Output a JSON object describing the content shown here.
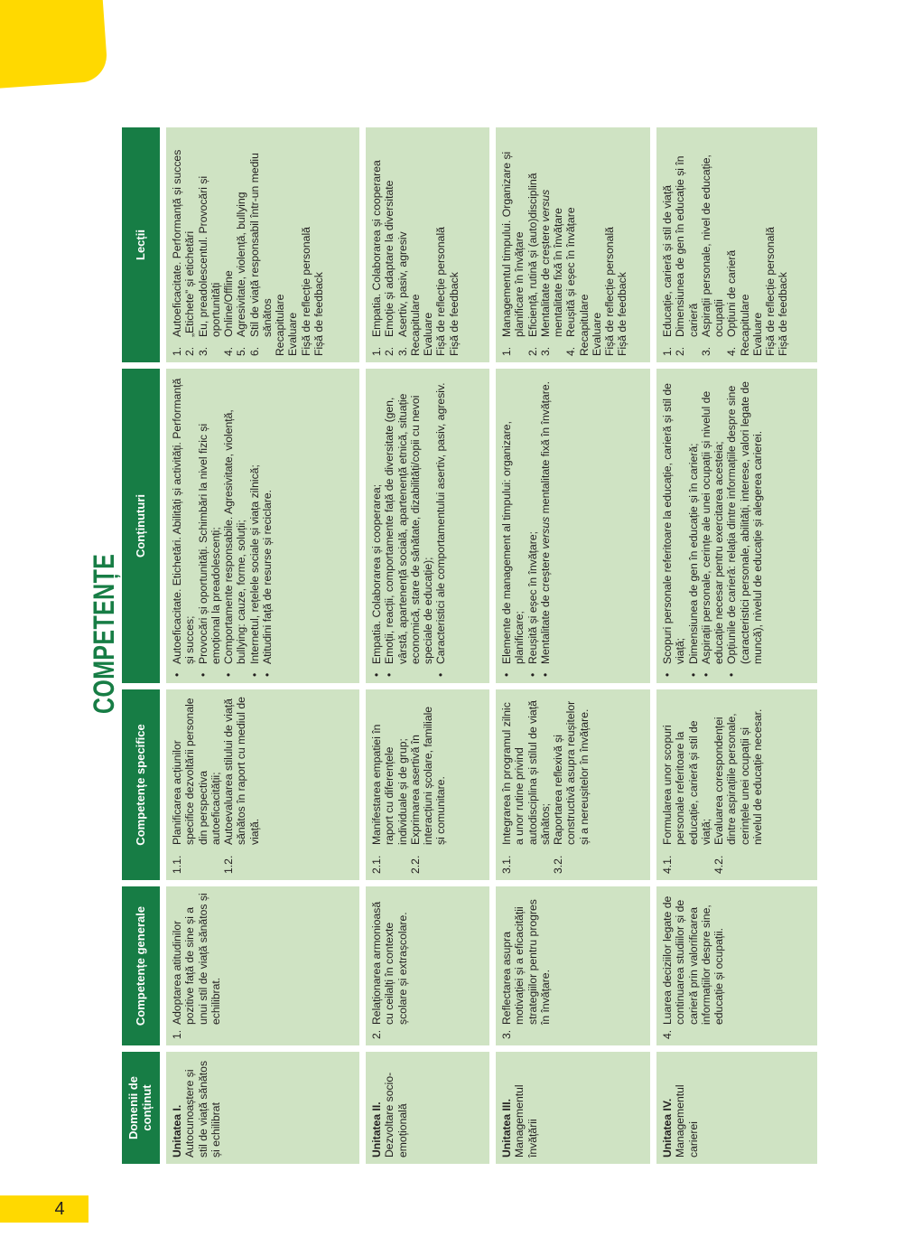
{
  "title": "COMPETENȚE",
  "page_number": "4",
  "colors": {
    "header_green": "#177d45",
    "cell_green": "#cfe3c3",
    "accent_yellow": "#ffd900",
    "text": "#231f20"
  },
  "table": {
    "headers": [
      "Domenii de conținut",
      "Competențe generale",
      "Competențe specifice",
      "Conținuturi",
      "Lecții"
    ],
    "units": [
      {
        "domain_title": "Unitatea I.",
        "domain_text": "Autocunoaștere și stil de viață sănătos și echilibrat",
        "general_competence": {
          "num": "1.",
          "text": "Adoptarea atitudinilor pozitive față de sine și a unui stil de viață sănătos și echilibrat."
        },
        "specific_competences": [
          {
            "num": "1.1.",
            "text": "Planificarea acțiunilor specifice dezvoltării personale din perspectiva autoeficacității;"
          },
          {
            "num": "1.2.",
            "text": "Autoevaluarea stilului de viață sănătos în raport cu mediul de viață."
          }
        ],
        "contents": [
          "Autoeficacitate. Etichetări. Abilități și activități. Performanță și succes;",
          "Provocări și oportunități. Schimbări la nivel fizic și emoțional la preadolescenți;",
          "Comportamente responsabile. Agresivitate, violență, bullying: cauze, forme, soluții;",
          "Internetul, rețelele sociale și viața zilnică;",
          "Atitudini față de resurse și reciclare."
        ],
        "lessons": [
          {
            "num": "1.",
            "text": "Autoeficacitate. Performanță și succes"
          },
          {
            "num": "2.",
            "text": "„Etichete” și etichetări"
          },
          {
            "num": "3.",
            "text": "Eu, preadolescentul. Provocări și oportunități"
          },
          {
            "num": "4.",
            "text": "Online/Offline"
          },
          {
            "num": "5.",
            "text": "Agresivitate, violență, bullying"
          },
          {
            "num": "6.",
            "text": "Stil de viață responsabil într-un mediu sănătos"
          }
        ],
        "lessons_extra": [
          "Recapitulare",
          "Evaluare",
          "Fișă de reflecție personală",
          "Fișă de feedback"
        ]
      },
      {
        "domain_title": "Unitatea II.",
        "domain_text": "Dezvoltare socio-emoțională",
        "general_competence": {
          "num": "2.",
          "text": "Relaționarea armonioasă cu ceilalți în contexte școlare și extrașcolare."
        },
        "specific_competences": [
          {
            "num": "2.1.",
            "text": "Manifestarea empatiei în raport cu diferențele individuale și de grup;"
          },
          {
            "num": "2.2.",
            "text": "Exprimarea asertivă în interacțiuni școlare, familiale și comunitare."
          }
        ],
        "contents": [
          "Empatia. Colaborarea și cooperarea;",
          "Emoții, reacții, comportamente față de diversitate (gen, vârstă, apartenență socială, apartenență etnică, situație economică, stare de sănătate, dizabilități/copii cu nevoi speciale de educație);",
          "Caracteristici ale comportamentului asertiv, pasiv, agresiv."
        ],
        "lessons": [
          {
            "num": "1.",
            "text": "Empatia. Colaborarea și cooperarea"
          },
          {
            "num": "2.",
            "text": "Emoție și adaptare la diversitate"
          },
          {
            "num": "3.",
            "text": "Asertiv, pasiv, agresiv"
          }
        ],
        "lessons_extra": [
          "Recapitulare",
          "Evaluare",
          "Fișă de reflecție personală",
          "Fișă de feedback"
        ]
      },
      {
        "domain_title": "Unitatea III.",
        "domain_text": "Managementul învățării",
        "general_competence": {
          "num": "3.",
          "text": "Reflectarea asupra motivației și a eficacității strategiilor pentru progres în învățare."
        },
        "specific_competences": [
          {
            "num": "3.1.",
            "text": "Integrarea în programul zilnic a unor rutine privind autodisciplina și stilul de viață sănătos;"
          },
          {
            "num": "3.2.",
            "text": "Raportarea reflexivă și constructivă asupra reușitelor și a nereușitelor în învățare."
          }
        ],
        "contents": [
          "Elemente de management al timpului: organizare, planificare;",
          "Reușită și eșec în învățare;",
          "Mentalitate de creștere versus mentalitate fixă în învățare."
        ],
        "lessons": [
          {
            "num": "1.",
            "text": "Managementul timpului. Organizare și planificare în învățare"
          },
          {
            "num": "2.",
            "text": "Eficiență, rutină și (auto)disciplină"
          },
          {
            "num": "3.",
            "text": "Mentalitate de creștere versus mentalitate fixă în învățare"
          },
          {
            "num": "4.",
            "text": "Reușită și eșec în învățare"
          }
        ],
        "lessons_extra": [
          "Recapitulare",
          "Evaluare",
          "Fișă de reflecție personală",
          "Fișă de feedback"
        ]
      },
      {
        "domain_title": "Unitatea IV.",
        "domain_text": "Managementul carierei",
        "general_competence": {
          "num": "4.",
          "text": "Luarea deciziilor legate de continuarea studiilor și de carieră prin valorificarea informațiilor despre sine, educație și ocupații."
        },
        "specific_competences": [
          {
            "num": "4.1.",
            "text": "Formularea unor scopuri personale referitoare la educație, carieră și stil de viață;"
          },
          {
            "num": "4.2.",
            "text": "Evaluarea corespondenței dintre aspirațiile personale, cerințele unei ocupații și nivelul de educație necesar."
          }
        ],
        "contents": [
          "Scopuri personale referitoare la educație, carieră și stil de viață;",
          "Dimensiunea de gen în educație și în carieră;",
          "Aspirații personale, cerințe ale unei ocupații și nivelul de educație necesar pentru exercitarea acesteia;",
          "Opțiunile de carieră: relația dintre informațiile despre sine (caracteristici personale, abilități, interese, valori legate de muncă), nivelul de educație și alegerea carierei."
        ],
        "lessons": [
          {
            "num": "1.",
            "text": "Educație, carieră și stil de viață"
          },
          {
            "num": "2.",
            "text": "Dimensiunea de gen în educație și în carieră"
          },
          {
            "num": "3.",
            "text": "Aspirații personale, nivel de educație, ocupații"
          },
          {
            "num": "4.",
            "text": "Opțiuni de carieră"
          }
        ],
        "lessons_extra": [
          "Recapitulare",
          "Evaluare",
          "Fișă de reflecție personală",
          "Fișă de feedback"
        ]
      }
    ]
  }
}
